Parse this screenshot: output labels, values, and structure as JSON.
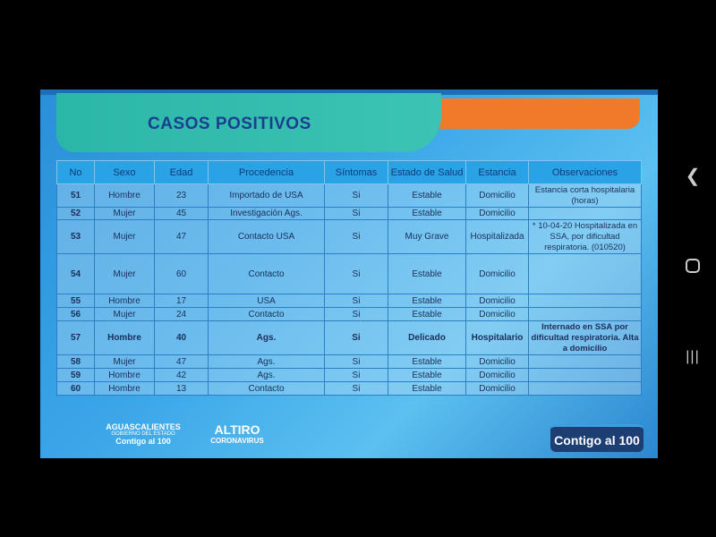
{
  "slide": {
    "title": "CASOS POSITIVOS",
    "table": {
      "headers": [
        "No",
        "Sexo",
        "Edad",
        "Procedencia",
        "Síntomas",
        "Estado de Salud",
        "Estancia",
        "Observaciones"
      ],
      "rows": [
        {
          "no": "51",
          "sexo": "Hombre",
          "edad": "23",
          "procedencia": "Importado de USA",
          "sintomas": "Si",
          "estado": "Estable",
          "estancia": "Domicilio",
          "obs": "Estancia corta hospitalaria (horas)"
        },
        {
          "no": "52",
          "sexo": "Mujer",
          "edad": "45",
          "procedencia": "Investigación Ags.",
          "sintomas": "Si",
          "estado": "Estable",
          "estancia": "Domicilio",
          "obs": ""
        },
        {
          "no": "53",
          "sexo": "Mujer",
          "edad": "47",
          "procedencia": "Contacto USA",
          "sintomas": "Si",
          "estado": "Muy Grave",
          "estancia": "Hospitalizada",
          "obs": "* 10-04-20 Hospitalizada en SSA, por dificultad respiratoria. (010520)"
        },
        {
          "no": "54",
          "sexo": "Mujer",
          "edad": "60",
          "procedencia": "Contacto",
          "sintomas": "Si",
          "estado": "Estable",
          "estancia": "Domicilio",
          "obs": ""
        },
        {
          "no": "55",
          "sexo": "Hombre",
          "edad": "17",
          "procedencia": "USA",
          "sintomas": "Si",
          "estado": "Estable",
          "estancia": "Domicilio",
          "obs": ""
        },
        {
          "no": "56",
          "sexo": "Mujer",
          "edad": "24",
          "procedencia": "Contacto",
          "sintomas": "Si",
          "estado": "Estable",
          "estancia": "Domicilio",
          "obs": ""
        },
        {
          "no": "57",
          "sexo": "Hombre",
          "edad": "40",
          "procedencia": "Ags.",
          "sintomas": "Si",
          "estado": "Delicado",
          "estancia": "Hospitalario",
          "obs": "Internado en SSA por dificultad respiratoria. Alta a domicilio"
        },
        {
          "no": "58",
          "sexo": "Mujer",
          "edad": "47",
          "procedencia": "Ags.",
          "sintomas": "Si",
          "estado": "Estable",
          "estancia": "Domicilio",
          "obs": ""
        },
        {
          "no": "59",
          "sexo": "Hombre",
          "edad": "42",
          "procedencia": "Ags.",
          "sintomas": "Si",
          "estado": "Estable",
          "estancia": "Domicilio",
          "obs": ""
        },
        {
          "no": "60",
          "sexo": "Hombre",
          "edad": "13",
          "procedencia": "Contacto",
          "sintomas": "Si",
          "estado": "Estable",
          "estancia": "Domicilio",
          "obs": ""
        }
      ]
    },
    "logos": {
      "ags_line1": "AGUASCALIENTES",
      "ags_line2": "GOBIERNO DEL ESTADO",
      "ags_line3": "Contigo al 100",
      "altiro": "ALTIRO",
      "coronavirus": "CORONAVIRUS",
      "badge": "Contigo al 100"
    }
  },
  "nav": {
    "back_icon": "chevron-left",
    "home_icon": "circle",
    "recents_icon": "three-lines"
  },
  "colors": {
    "title": "#1b3f8f",
    "teal": "#2bb7a8",
    "orange": "#f07a2a",
    "header": "#2aa3e6"
  }
}
